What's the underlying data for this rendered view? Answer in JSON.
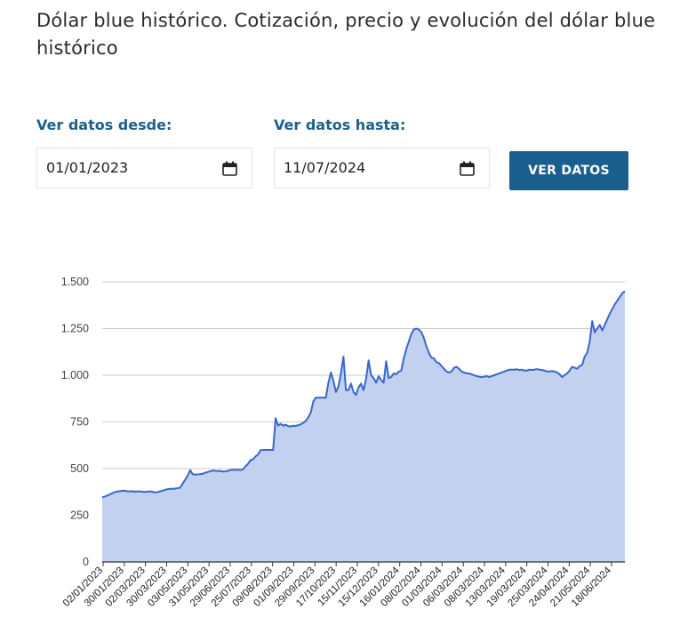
{
  "page": {
    "title": "Dólar blue histórico. Cotización, precio y evolución del dólar blue histórico"
  },
  "filters": {
    "from_label": "Ver datos desde:",
    "from_value": "01/01/2023",
    "to_label": "Ver datos hasta:",
    "to_value": "11/07/2024",
    "button_label": "VER DATOS",
    "button_color": "#1a5e8e",
    "label_color": "#1d5f8c",
    "calendar_icon": "calendar-icon"
  },
  "chart_data": {
    "type": "area",
    "title": "",
    "xlabel": "",
    "ylabel": "",
    "ylim": [
      0,
      1500
    ],
    "yticks": [
      0,
      250,
      500,
      750,
      1000,
      1250,
      1500
    ],
    "ytick_labels": [
      "0",
      "250",
      "500",
      "750",
      "1.000",
      "1.250",
      "1.500"
    ],
    "xtick_labels": [
      "02/01/2023",
      "30/01/2023",
      "02/03/2023",
      "30/03/2023",
      "03/05/2023",
      "31/05/2023",
      "29/06/2023",
      "25/07/2023",
      "09/08/2023",
      "01/09/2023",
      "29/09/2023",
      "17/10/2023",
      "15/11/2023",
      "15/12/2023",
      "16/01/2024",
      "08/02/2024",
      "01/03/2024",
      "06/03/2024",
      "08/03/2024",
      "13/03/2024",
      "19/03/2024",
      "25/03/2024",
      "24/04/2024",
      "21/05/2024",
      "18/06/2024"
    ],
    "grid": true,
    "line_color": "#3a66c8",
    "fill_color": "#c3d1f0",
    "series": [
      {
        "values": [
          346,
          350,
          356,
          362,
          368,
          374,
          377,
          379,
          381,
          382,
          378,
          378,
          379,
          377,
          378,
          378,
          376,
          375,
          377,
          378,
          376,
          372,
          374,
          378,
          382,
          386,
          390,
          392,
          391,
          393,
          395,
          398,
          420,
          440,
          462,
          492,
          470,
          468,
          469,
          470,
          472,
          478,
          482,
          486,
          490,
          488,
          487,
          488,
          484,
          485,
          488,
          492,
          494,
          493,
          494,
          492,
          496,
          512,
          525,
          545,
          550,
          565,
          575,
          598,
          600,
          600,
          600,
          600,
          600,
          770,
          730,
          740,
          730,
          735,
          728,
          725,
          730,
          728,
          733,
          737,
          745,
          755,
          775,
          800,
          860,
          880,
          880,
          880,
          880,
          880,
          960,
          1015,
          970,
          910,
          940,
          1010,
          1100,
          920,
          920,
          955,
          910,
          895,
          935,
          955,
          920,
          980,
          1080,
          1000,
          985,
          960,
          995,
          975,
          960,
          1075,
          985,
          990,
          1010,
          1005,
          1020,
          1025,
          1090,
          1140,
          1180,
          1220,
          1245,
          1250,
          1245,
          1230,
          1200,
          1155,
          1120,
          1095,
          1090,
          1070,
          1065,
          1050,
          1035,
          1020,
          1015,
          1020,
          1040,
          1045,
          1035,
          1020,
          1015,
          1010,
          1010,
          1005,
          1000,
          995,
          992,
          990,
          992,
          995,
          990,
          995,
          1000,
          1005,
          1010,
          1015,
          1020,
          1025,
          1030,
          1030,
          1030,
          1032,
          1028,
          1030,
          1025,
          1025,
          1030,
          1028,
          1030,
          1033,
          1030,
          1028,
          1025,
          1020,
          1020,
          1022,
          1020,
          1015,
          1005,
          990,
          1000,
          1010,
          1025,
          1045,
          1040,
          1035,
          1050,
          1055,
          1100,
          1120,
          1180,
          1290,
          1230,
          1250,
          1270,
          1240,
          1270,
          1300,
          1330,
          1355,
          1380,
          1400,
          1420,
          1440,
          1450
        ]
      }
    ]
  }
}
